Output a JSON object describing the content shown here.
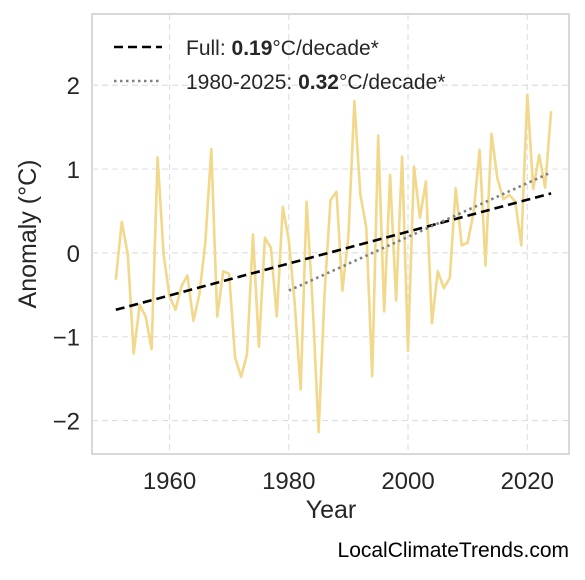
{
  "chart_data": {
    "type": "line",
    "xlabel": "Year",
    "ylabel": "Anomaly (°C)",
    "xlim": [
      1947,
      2027
    ],
    "ylim": [
      -2.4,
      2.85
    ],
    "xticks": [
      1960,
      1980,
      2000,
      2020
    ],
    "yticks": [
      -2,
      -1,
      0,
      1,
      2
    ],
    "ytick_labels": [
      "−2",
      "−1",
      "0",
      "1",
      "2"
    ],
    "grid": true,
    "legend_position": "top-left",
    "series": [
      {
        "style": "solid",
        "color": "#f2d88a",
        "x": [
          1951,
          1952,
          1953,
          1954,
          1955,
          1956,
          1957,
          1958,
          1959,
          1960,
          1961,
          1962,
          1963,
          1964,
          1965,
          1966,
          1967,
          1968,
          1969,
          1970,
          1971,
          1972,
          1973,
          1974,
          1975,
          1976,
          1977,
          1978,
          1979,
          1980,
          1981,
          1982,
          1983,
          1984,
          1985,
          1986,
          1987,
          1988,
          1989,
          1990,
          1991,
          1992,
          1993,
          1994,
          1995,
          1996,
          1997,
          1998,
          1999,
          2000,
          2001,
          2002,
          2003,
          2004,
          2005,
          2006,
          2007,
          2008,
          2009,
          2010,
          2011,
          2012,
          2013,
          2014,
          2015,
          2016,
          2017,
          2018,
          2019,
          2020,
          2021,
          2022,
          2023,
          2024
        ],
        "y": [
          -0.32,
          0.37,
          -0.02,
          -1.2,
          -0.62,
          -0.76,
          -1.15,
          1.14,
          -0.02,
          -0.52,
          -0.68,
          -0.4,
          -0.27,
          -0.81,
          -0.5,
          0.12,
          1.24,
          -0.76,
          -0.22,
          -0.25,
          -1.25,
          -1.48,
          -1.21,
          0.22,
          -1.12,
          0.18,
          0.06,
          -0.76,
          0.55,
          0.15,
          -0.6,
          -1.63,
          0.61,
          -0.6,
          -2.14,
          -0.5,
          0.63,
          0.73,
          -0.45,
          0.2,
          1.81,
          0.7,
          0.3,
          -1.47,
          1.4,
          -0.7,
          0.93,
          -0.57,
          1.15,
          -1.17,
          1.03,
          0.42,
          0.85,
          -0.84,
          -0.22,
          -0.42,
          -0.3,
          0.77,
          0.09,
          0.12,
          0.48,
          1.23,
          -0.15,
          1.42,
          0.89,
          0.64,
          0.69,
          0.61,
          0.09,
          1.89,
          0.76,
          1.17,
          0.78,
          1.69
        ]
      },
      {
        "name": "Full: ",
        "value": "0.19",
        "unit": "°C/decade*",
        "style": "dashed",
        "color": "#000000",
        "x": [
          1951,
          2024
        ],
        "y": [
          -0.68,
          0.71
        ]
      },
      {
        "name": "1980-2025: ",
        "value": "0.32",
        "unit": "°C/decade*",
        "style": "dotted",
        "color": "#808080",
        "x": [
          1980,
          2024
        ],
        "y": [
          -0.45,
          0.96
        ]
      }
    ]
  },
  "credit": "LocalClimateTrends.com"
}
